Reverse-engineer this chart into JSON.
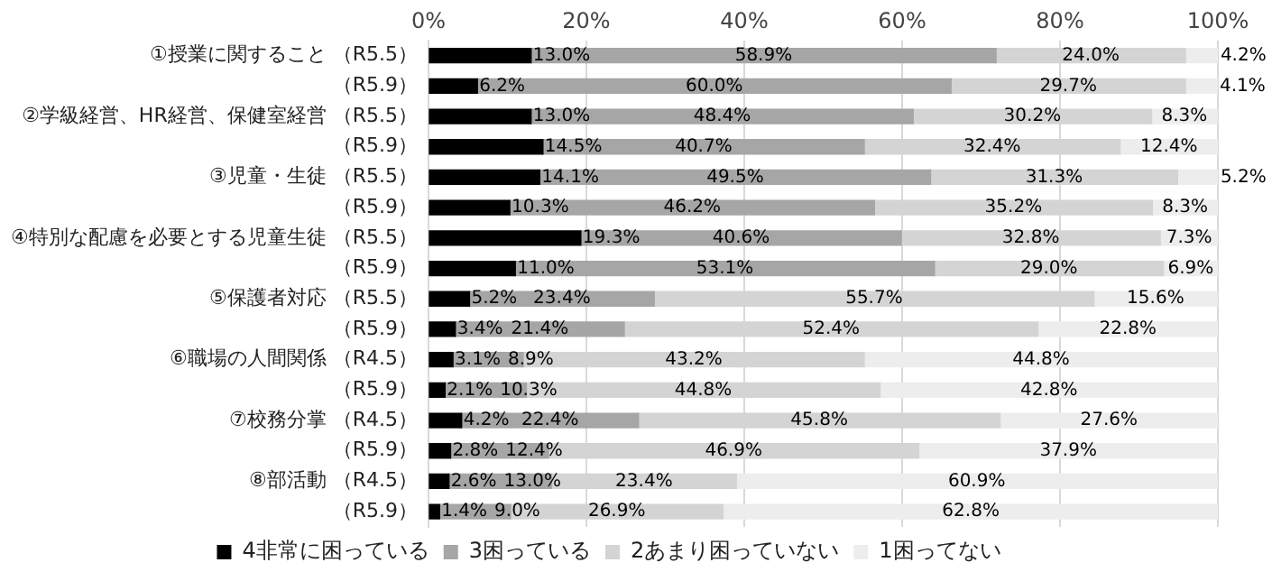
{
  "chart_data": {
    "type": "bar",
    "orientation": "horizontal",
    "stacked": true,
    "categories": [
      "①授業に関すること （R5.5）",
      "（R5.9）",
      "②学級経営、HR経営、保健室経営 （R5.5）",
      "（R5.9）",
      "③児童・生徒 （R5.5）",
      "（R5.9）",
      "④特別な配慮を必要とする児童生徒 （R5.5）",
      "（R5.9）",
      "⑤保護者対応 （R5.5）",
      "（R5.9）",
      "⑥職場の人間関係 （R4.5）",
      "（R5.9）",
      "⑦校務分掌 （R4.5）",
      "（R5.9）",
      "⑧部活動 （R4.5）",
      "（R5.9）"
    ],
    "series": [
      {
        "name": "4非常に困っている",
        "color": "#000000",
        "values": [
          13.0,
          6.2,
          13.0,
          14.5,
          14.1,
          10.3,
          19.3,
          11.0,
          5.2,
          3.4,
          3.1,
          2.1,
          4.2,
          2.8,
          2.6,
          1.4
        ],
        "value_labels": [
          "13.0%",
          "6.2%",
          "13.0%",
          "14.5%",
          "14.1%",
          "10.3%",
          "19.3%",
          "11.0%",
          "5.2%",
          "3.4%",
          "3.1%",
          "2.1%",
          "4.2%",
          "2.8%",
          "2.6%",
          "1.4%"
        ]
      },
      {
        "name": "3困っている",
        "color": "#a6a6a6",
        "values": [
          58.9,
          60.0,
          48.4,
          40.7,
          49.5,
          46.2,
          40.6,
          53.1,
          23.4,
          21.4,
          8.9,
          10.3,
          22.4,
          12.4,
          13.0,
          9.0
        ],
        "value_labels": [
          "58.9%",
          "60.0%",
          "48.4%",
          "40.7%",
          "49.5%",
          "46.2%",
          "40.6%",
          "53.1%",
          "23.4%",
          "21.4%",
          "8.9%",
          "10.3%",
          "22.4%",
          "12.4%",
          "13.0%",
          "9.0%"
        ]
      },
      {
        "name": "2あまり困っていない",
        "color": "#d4d4d4",
        "values": [
          24.0,
          29.7,
          30.2,
          32.4,
          31.3,
          35.2,
          32.8,
          29.0,
          55.7,
          52.4,
          43.2,
          44.8,
          45.8,
          46.9,
          23.4,
          26.9
        ],
        "value_labels": [
          "24.0%",
          "29.7%",
          "30.2%",
          "32.4%",
          "31.3%",
          "35.2%",
          "32.8%",
          "29.0%",
          "55.7%",
          "52.4%",
          "43.2%",
          "44.8%",
          "45.8%",
          "46.9%",
          "23.4%",
          "26.9%"
        ]
      },
      {
        "name": "1困ってない",
        "color": "#ededed",
        "values": [
          4.2,
          4.1,
          8.3,
          12.4,
          5.2,
          8.3,
          7.3,
          6.9,
          15.6,
          22.8,
          44.8,
          42.8,
          27.6,
          37.9,
          60.9,
          62.8
        ],
        "value_labels": [
          "4.2%",
          "4.1%",
          "8.3%",
          "12.4%",
          "5.2%",
          "8.3%",
          "7.3%",
          "6.9%",
          "15.6%",
          "22.8%",
          "44.8%",
          "42.8%",
          "27.6%",
          "37.9%",
          "60.9%",
          "62.8%"
        ]
      }
    ],
    "xlim": [
      0,
      100
    ],
    "xticks": [
      {
        "value": 0,
        "label": "0%"
      },
      {
        "value": 20,
        "label": "20%"
      },
      {
        "value": 40,
        "label": "40%"
      },
      {
        "value": 60,
        "label": "60%"
      },
      {
        "value": 80,
        "label": "80%"
      },
      {
        "value": 100,
        "label": "100%"
      }
    ],
    "grid": "x",
    "legend": "bottom"
  }
}
